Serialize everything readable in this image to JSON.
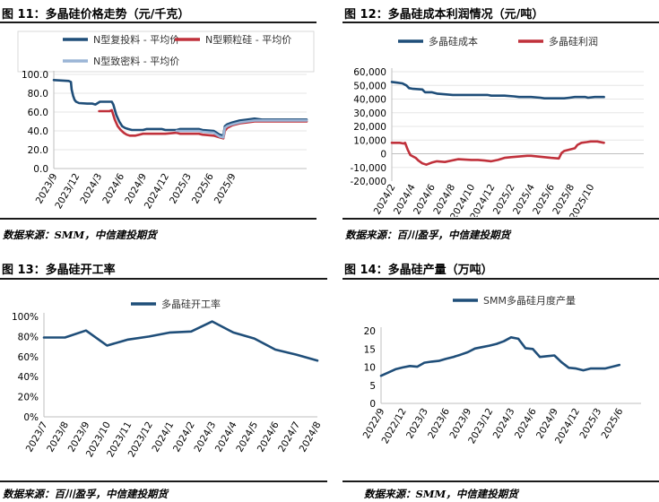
{
  "charts": [
    {
      "title": "图 11：多晶硅价格走势（元/千克）",
      "source": "数据来源：SMM，中信建投期货"
    },
    {
      "title": "图 12：多晶硅成本利润情况（元/吨）",
      "source": "数据来源：百川盈孚，中信建投期货"
    },
    {
      "title": "图 13：多晶硅开工率",
      "source": "数据来源：百川盈孚，中信建投期货"
    },
    {
      "title": "图 14：多晶硅产量（万吨）",
      "source": "数据来源：SMM，中信建投期货"
    }
  ],
  "colors": {
    "navy": "#1f4e79",
    "red": "#c0313b",
    "lightblue": "#9bb5d6",
    "axis": "#bfbfbf"
  },
  "chart_data": [
    {
      "type": "line",
      "title": "图 11：多晶硅价格走势（元/千克）",
      "x_range": [
        0,
        34
      ],
      "x_ticks": [
        {
          "x": 0,
          "label": "2023/9"
        },
        {
          "x": 3,
          "label": "2023/12"
        },
        {
          "x": 6,
          "label": "2024/3"
        },
        {
          "x": 9,
          "label": "2024/6"
        },
        {
          "x": 12,
          "label": "2024/9"
        },
        {
          "x": 15,
          "label": "2024/12"
        },
        {
          "x": 18,
          "label": "2025/3"
        },
        {
          "x": 21,
          "label": "2025/6"
        },
        {
          "x": 24,
          "label": "2025/9"
        }
      ],
      "y_ticks": [
        "0.0",
        "20.0",
        "40.0",
        "60.0",
        "80.0",
        "100.0"
      ],
      "ylim": [
        0,
        100
      ],
      "legend": [
        "N型复投料 - 平均价",
        "N型颗粒硅 - 平均价",
        "N型致密料 - 平均价"
      ],
      "series": [
        {
          "name": "N型复投料 - 平均价",
          "color": "#1f4e79",
          "points": [
            [
              0,
              94
            ],
            [
              2.0,
              93
            ],
            [
              2.3,
              92
            ],
            [
              2.4,
              84
            ],
            [
              2.6,
              77
            ],
            [
              2.8,
              73
            ],
            [
              3.0,
              71
            ],
            [
              3.4,
              69.5
            ],
            [
              4.5,
              69
            ],
            [
              5.2,
              69
            ],
            [
              5.6,
              68
            ],
            [
              6.2,
              71
            ],
            [
              7.8,
              71
            ],
            [
              8.0,
              68
            ],
            [
              8.4,
              57
            ],
            [
              8.8,
              50
            ],
            [
              9.2,
              45
            ],
            [
              9.6,
              43
            ],
            [
              10.0,
              42
            ],
            [
              10.5,
              41
            ],
            [
              11.5,
              41
            ],
            [
              12.0,
              41
            ],
            [
              12.5,
              42
            ],
            [
              14.5,
              42
            ],
            [
              15.0,
              41
            ],
            [
              16.5,
              41
            ],
            [
              17.0,
              42
            ],
            [
              19.5,
              42
            ],
            [
              20.0,
              41
            ],
            [
              21.5,
              40
            ],
            [
              22.3,
              36
            ],
            [
              22.8,
              35
            ],
            [
              23.0,
              45
            ],
            [
              23.3,
              47
            ],
            [
              24.0,
              49
            ],
            [
              25.0,
              51
            ],
            [
              26.0,
              52
            ],
            [
              27.0,
              53
            ],
            [
              28.0,
              52
            ],
            [
              30.0,
              52
            ],
            [
              34.0,
              52
            ]
          ]
        },
        {
          "name": "N型颗粒硅 - 平均价",
          "color": "#c0313b",
          "points": [
            [
              6.1,
              61
            ],
            [
              7.5,
              61
            ],
            [
              7.8,
              62
            ],
            [
              8.2,
              52
            ],
            [
              8.6,
              45
            ],
            [
              9.0,
              41
            ],
            [
              9.4,
              38
            ],
            [
              9.8,
              36
            ],
            [
              10.2,
              35
            ],
            [
              11.0,
              35
            ],
            [
              11.5,
              36
            ],
            [
              12.0,
              37
            ],
            [
              14.5,
              37
            ],
            [
              15.0,
              37
            ],
            [
              16.5,
              38
            ],
            [
              17.0,
              37
            ],
            [
              19.5,
              37
            ],
            [
              20.0,
              36
            ],
            [
              21.5,
              35
            ],
            [
              22.3,
              33
            ],
            [
              22.8,
              32
            ],
            [
              23.0,
              40
            ],
            [
              23.3,
              43
            ],
            [
              24.0,
              46
            ],
            [
              25.0,
              48
            ],
            [
              26.0,
              49
            ],
            [
              27.0,
              50
            ],
            [
              28.0,
              50
            ],
            [
              30.0,
              50
            ],
            [
              34.0,
              50
            ]
          ]
        },
        {
          "name": "N型致密料 - 平均价",
          "color": "#9bb5d6",
          "points": [
            [
              16.5,
              40
            ],
            [
              17.0,
              40
            ],
            [
              19.5,
              40
            ],
            [
              20.0,
              39
            ],
            [
              21.5,
              38
            ],
            [
              22.3,
              34
            ],
            [
              22.8,
              33
            ],
            [
              23.0,
              43
            ],
            [
              23.3,
              45
            ],
            [
              24.0,
              47
            ],
            [
              25.0,
              49
            ],
            [
              26.0,
              50
            ],
            [
              27.0,
              51
            ],
            [
              28.0,
              51
            ],
            [
              30.0,
              51
            ],
            [
              34.0,
              51
            ]
          ]
        }
      ]
    },
    {
      "type": "line",
      "title": "图 12：多晶硅成本利润情况（元/吨）",
      "x_range": [
        0,
        19
      ],
      "x_ticks": [
        {
          "x": 0,
          "label": "2024/2"
        },
        {
          "x": 1.5,
          "label": "2024/4"
        },
        {
          "x": 3,
          "label": "2024/6"
        },
        {
          "x": 4.5,
          "label": "2024/8"
        },
        {
          "x": 6,
          "label": "2024/10"
        },
        {
          "x": 7.5,
          "label": "2024/12"
        },
        {
          "x": 9,
          "label": "2025/2"
        },
        {
          "x": 10.5,
          "label": "2025/4"
        },
        {
          "x": 12,
          "label": "2025/6"
        },
        {
          "x": 13.5,
          "label": "2025/8"
        },
        {
          "x": 15,
          "label": "2025/10"
        }
      ],
      "y_ticks": [
        "-20,000",
        "-10,000",
        "0",
        "10,000",
        "20,000",
        "30,000",
        "40,000",
        "50,000",
        "60,000"
      ],
      "ylim": [
        -20000,
        60000
      ],
      "legend": [
        "多晶硅成本",
        "多晶硅利润"
      ],
      "series": [
        {
          "name": "多晶硅成本",
          "color": "#1f4e79",
          "points": [
            [
              0,
              52500
            ],
            [
              0.4,
              52000
            ],
            [
              0.8,
              51500
            ],
            [
              1.1,
              50000
            ],
            [
              1.3,
              48000
            ],
            [
              1.6,
              47500
            ],
            [
              2.3,
              47000
            ],
            [
              2.5,
              45000
            ],
            [
              3.0,
              45000
            ],
            [
              3.4,
              44000
            ],
            [
              4.0,
              43500
            ],
            [
              4.6,
              43000
            ],
            [
              6.0,
              43000
            ],
            [
              7.2,
              43000
            ],
            [
              7.5,
              42500
            ],
            [
              8.5,
              42500
            ],
            [
              9.2,
              42000
            ],
            [
              9.6,
              41500
            ],
            [
              10.5,
              41500
            ],
            [
              11.2,
              41000
            ],
            [
              11.5,
              40500
            ],
            [
              12.0,
              40500
            ],
            [
              13.0,
              40500
            ],
            [
              13.4,
              41000
            ],
            [
              13.8,
              41500
            ],
            [
              14.6,
              41500
            ],
            [
              14.8,
              41000
            ],
            [
              15.3,
              41500
            ],
            [
              16.0,
              41500
            ]
          ]
        },
        {
          "name": "多晶硅利润",
          "color": "#c0313b",
          "points": [
            [
              0,
              8000
            ],
            [
              0.6,
              8000
            ],
            [
              0.9,
              7500
            ],
            [
              1.0,
              8000
            ],
            [
              1.2,
              3000
            ],
            [
              1.4,
              -1000
            ],
            [
              1.8,
              -3000
            ],
            [
              2.0,
              -5000
            ],
            [
              2.3,
              -7000
            ],
            [
              2.6,
              -8000
            ],
            [
              3.0,
              -6500
            ],
            [
              3.4,
              -5500
            ],
            [
              4.0,
              -6000
            ],
            [
              4.5,
              -5000
            ],
            [
              5.0,
              -4000
            ],
            [
              6.0,
              -4500
            ],
            [
              6.5,
              -4500
            ],
            [
              7.0,
              -5000
            ],
            [
              7.5,
              -5500
            ],
            [
              8.0,
              -4500
            ],
            [
              8.5,
              -3000
            ],
            [
              9.0,
              -2500
            ],
            [
              9.6,
              -2000
            ],
            [
              10.2,
              -1500
            ],
            [
              10.5,
              -1500
            ],
            [
              11.0,
              -2000
            ],
            [
              11.5,
              -2500
            ],
            [
              12.0,
              -3000
            ],
            [
              12.6,
              -3500
            ],
            [
              12.8,
              500
            ],
            [
              13.0,
              2000
            ],
            [
              13.4,
              3000
            ],
            [
              13.8,
              4000
            ],
            [
              14.0,
              6500
            ],
            [
              14.3,
              8000
            ],
            [
              14.7,
              8500
            ],
            [
              15.0,
              9000
            ],
            [
              15.5,
              9000
            ],
            [
              16.0,
              8000
            ]
          ]
        }
      ]
    },
    {
      "type": "line",
      "title": "图 13：多晶硅开工率",
      "categories": [
        "2023/7",
        "2023/8",
        "2023/9",
        "2023/10",
        "2023/11",
        "2023/12",
        "2024/1",
        "2024/2",
        "2024/3",
        "2024/4",
        "2024/5",
        "2024/6",
        "2024/7",
        "2024/8"
      ],
      "y_ticks": [
        "0%",
        "20%",
        "40%",
        "60%",
        "80%",
        "100%"
      ],
      "ylim": [
        0,
        100
      ],
      "legend": [
        "多晶硅开工率"
      ],
      "series": [
        {
          "name": "多晶硅开工率",
          "color": "#1f4e79",
          "values": [
            79,
            79,
            86,
            71,
            77,
            80,
            84,
            85,
            95,
            84,
            78,
            67,
            62,
            56
          ]
        }
      ]
    },
    {
      "type": "line",
      "title": "图 14：多晶硅产量（万吨）",
      "x_range": [
        0,
        36
      ],
      "x_ticks": [
        {
          "x": 0,
          "label": "2022/9"
        },
        {
          "x": 3,
          "label": "2022/12"
        },
        {
          "x": 6,
          "label": "2023/3"
        },
        {
          "x": 9,
          "label": "2023/6"
        },
        {
          "x": 12,
          "label": "2023/9"
        },
        {
          "x": 15,
          "label": "2023/12"
        },
        {
          "x": 18,
          "label": "2024/3"
        },
        {
          "x": 21,
          "label": "2024/6"
        },
        {
          "x": 24,
          "label": "2024/9"
        },
        {
          "x": 27,
          "label": "2024/12"
        },
        {
          "x": 30,
          "label": "2025/3"
        },
        {
          "x": 33,
          "label": "2025/6"
        }
      ],
      "y_ticks": [
        "0",
        "5",
        "10",
        "15",
        "20"
      ],
      "ylim": [
        0,
        20
      ],
      "legend": [
        "SMM多晶硅月度产量"
      ],
      "series": [
        {
          "name": "SMM多晶硅月度产量",
          "color": "#1f4e79",
          "points": [
            [
              0,
              7.6
            ],
            [
              1,
              8.5
            ],
            [
              2,
              9.4
            ],
            [
              3,
              9.9
            ],
            [
              4,
              10.3
            ],
            [
              5,
              10.1
            ],
            [
              6,
              11.2
            ],
            [
              7,
              11.5
            ],
            [
              8,
              11.7
            ],
            [
              9,
              12.3
            ],
            [
              10,
              12.8
            ],
            [
              11,
              13.4
            ],
            [
              12,
              14.1
            ],
            [
              13,
              15.1
            ],
            [
              14,
              15.5
            ],
            [
              15,
              15.9
            ],
            [
              16,
              16.4
            ],
            [
              17,
              17.1
            ],
            [
              18,
              18.2
            ],
            [
              19,
              17.8
            ],
            [
              20,
              15.2
            ],
            [
              21,
              15.0
            ],
            [
              22,
              12.8
            ],
            [
              23,
              13.0
            ],
            [
              24,
              13.2
            ],
            [
              25,
              11.3
            ],
            [
              26,
              9.8
            ],
            [
              27,
              9.6
            ],
            [
              28,
              9.1
            ],
            [
              29,
              9.6
            ],
            [
              30,
              9.6
            ],
            [
              31,
              9.6
            ],
            [
              32,
              10.1
            ],
            [
              33,
              10.6
            ]
          ]
        }
      ]
    }
  ]
}
